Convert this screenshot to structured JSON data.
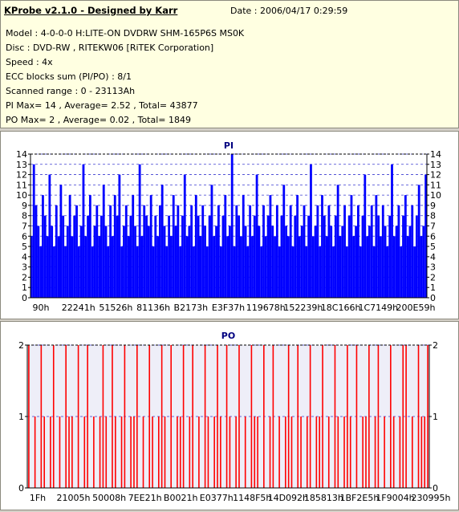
{
  "header": {
    "app_title": "KProbe v2.1.0 - Designed by Karr",
    "date": "Date : 2006/04/17 0:29:59",
    "lines": [
      "Model : 4-0-0-0 H:LITE-ON DVDRW SHM-165P6S MS0K",
      "Disc : DVD-RW , RITEKW06 [RiTEK Corporation]",
      "Speed : 4x",
      "ECC blocks sum (PI/PO) : 8/1",
      "Scanned range : 0 - 23113Ah",
      "PI Max= 14 , Average= 2.52 , Total= 43877",
      "PO Max= 2 , Average= 0.02 , Total= 1849"
    ]
  },
  "chart_data": [
    {
      "type": "bar",
      "title": "PI",
      "xlabel": "",
      "ylabel": "",
      "ylim": [
        0,
        14
      ],
      "yticks": [
        0,
        1,
        2,
        3,
        4,
        5,
        6,
        7,
        8,
        9,
        10,
        11,
        12,
        13,
        14
      ],
      "xtick_labels": [
        "90h",
        "22241h",
        "51526h",
        "81136h",
        "B2173h",
        "E3F37h",
        "119678h",
        "152239h",
        "18C166h",
        "1C7149h",
        "200E59h"
      ],
      "grid": true,
      "color": "#0000ff",
      "series": [
        {
          "values": [
            6,
            13,
            9,
            7,
            5,
            10,
            8,
            6,
            12,
            7,
            5,
            9,
            6,
            11,
            8,
            5,
            7,
            10,
            6,
            8,
            9,
            5,
            7,
            13,
            6,
            8,
            10,
            5,
            7,
            9,
            6,
            8,
            11,
            7,
            5,
            9,
            6,
            10,
            8,
            12,
            5,
            7,
            9,
            6,
            8,
            10,
            7,
            5,
            13,
            6,
            9,
            8,
            7,
            10,
            5,
            8,
            6,
            9,
            11,
            7,
            5,
            8,
            6,
            10,
            7,
            9,
            5,
            8,
            12,
            6,
            7,
            9,
            5,
            10,
            8,
            6,
            9,
            7,
            5,
            8,
            11,
            6,
            7,
            9,
            5,
            8,
            10,
            6,
            7,
            14,
            5,
            9,
            8,
            6,
            10,
            7,
            5,
            9,
            6,
            8,
            12,
            7,
            5,
            9,
            6,
            8,
            10,
            7,
            6,
            9,
            5,
            8,
            11,
            7,
            6,
            9,
            5,
            8,
            10,
            6,
            7,
            9,
            5,
            8,
            13,
            6,
            7,
            9,
            5,
            10,
            8,
            6,
            9,
            7,
            5,
            8,
            11,
            6,
            7,
            9,
            5,
            8,
            10,
            6,
            7,
            9,
            5,
            8,
            12,
            6,
            7,
            9,
            5,
            10,
            8,
            6,
            9,
            7,
            5,
            8,
            13,
            6,
            7,
            9,
            5,
            8,
            10,
            6,
            7,
            9,
            5,
            8,
            11,
            6,
            7,
            12
          ]
        }
      ]
    },
    {
      "type": "bar",
      "title": "PO",
      "xlabel": "",
      "ylabel": "",
      "ylim": [
        0,
        2
      ],
      "yticks": [
        0,
        1,
        2
      ],
      "xtick_labels": [
        "1Fh",
        "21005h",
        "50008h",
        "7EE21h",
        "B0021h",
        "E0377h",
        "1148F5h",
        "14D092h",
        "185813h",
        "1BF2E5h",
        "1F9004h",
        "230995h"
      ],
      "grid": true,
      "color": "#ff0000",
      "series": [
        {
          "values": [
            2,
            0,
            1,
            0,
            2,
            1,
            0,
            1,
            2,
            0,
            1,
            0,
            2,
            1,
            1,
            0,
            2,
            0,
            1,
            2,
            0,
            1,
            0,
            1,
            2,
            1,
            0,
            2,
            1,
            0,
            1,
            2,
            0,
            1,
            1,
            2,
            0,
            1,
            0,
            2,
            1,
            0,
            1,
            2,
            1,
            0,
            2,
            0,
            1,
            1,
            2,
            0,
            1,
            2,
            0,
            1,
            0,
            2,
            1,
            0,
            1,
            2,
            1,
            0,
            2,
            1,
            0,
            1,
            2,
            0,
            1,
            0,
            2,
            1,
            1,
            0,
            2,
            0,
            1,
            2,
            0,
            1,
            0,
            1,
            2,
            1,
            0,
            2,
            1,
            0,
            1,
            2,
            0,
            1,
            1,
            2,
            0,
            1,
            0,
            2,
            1,
            0,
            1,
            2,
            1,
            0,
            2,
            0,
            1,
            1,
            2,
            0,
            1,
            2,
            0,
            1,
            0,
            2,
            1,
            0,
            1,
            2,
            2,
            0,
            1,
            0,
            2,
            1,
            1,
            2
          ]
        }
      ]
    }
  ]
}
